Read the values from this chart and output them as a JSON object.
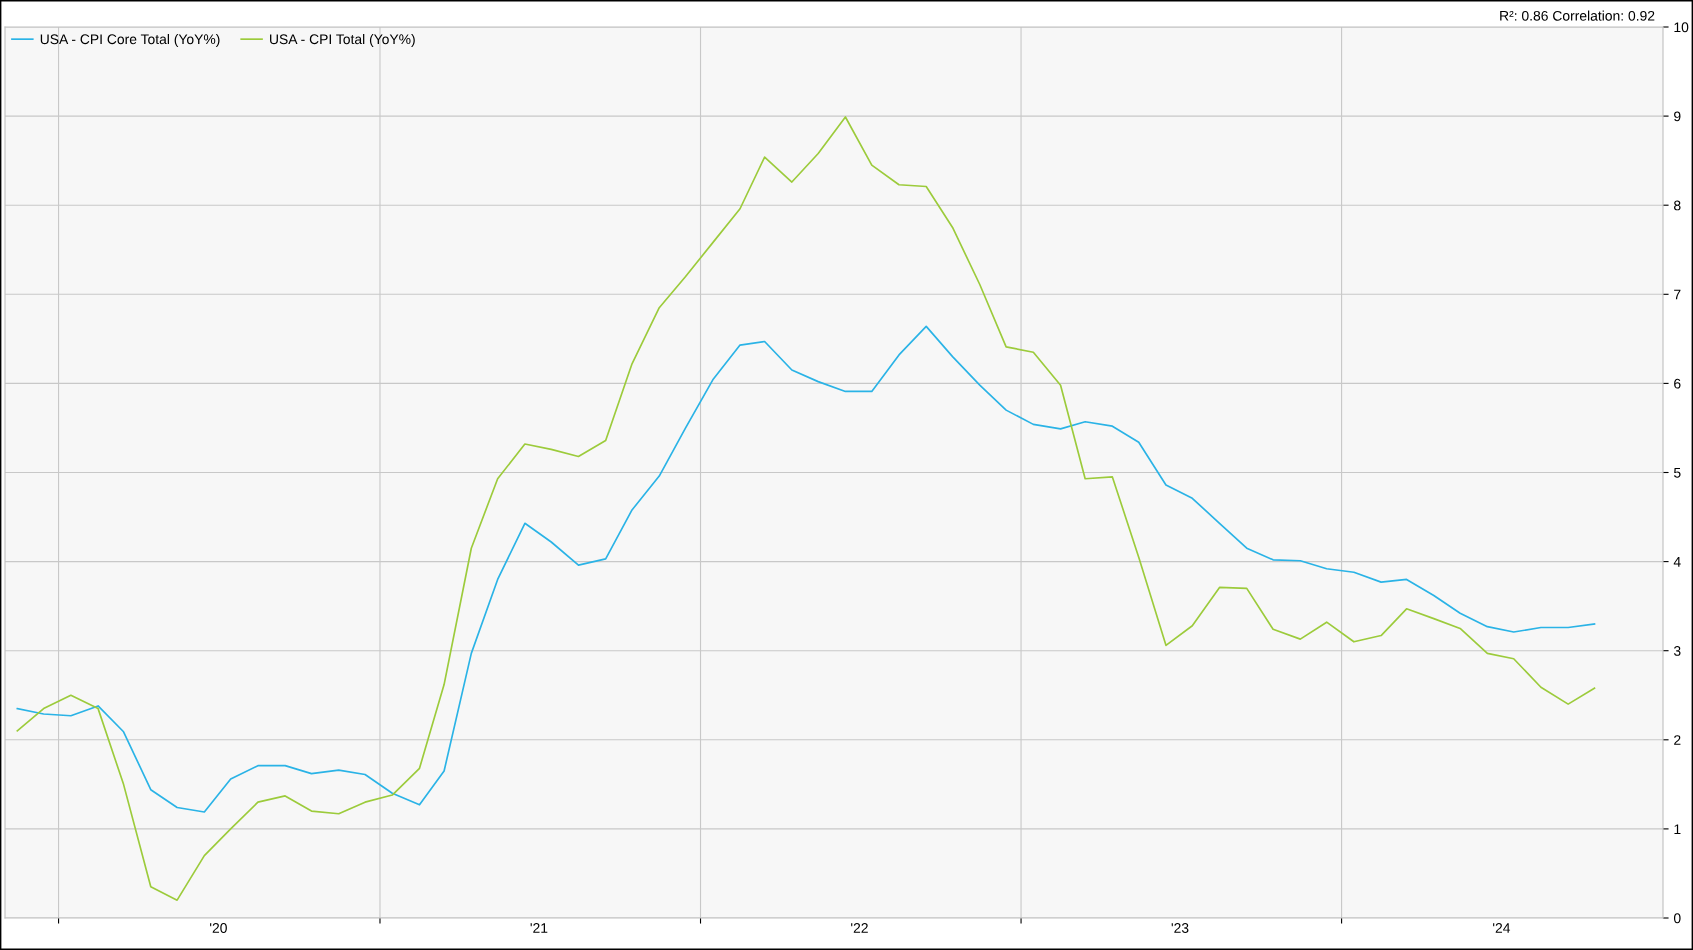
{
  "chart_data": {
    "type": "line",
    "annotations": [
      "R²: 0.86 Correlation: 0.92"
    ],
    "x": [
      "2019-11-15",
      "2019-12-15",
      "2020-01-15",
      "2020-02-15",
      "2020-03-15",
      "2020-04-15",
      "2020-05-15",
      "2020-06-15",
      "2020-07-15",
      "2020-08-15",
      "2020-09-15",
      "2020-10-15",
      "2020-11-15",
      "2020-12-15",
      "2021-01-15",
      "2021-02-15",
      "2021-03-15",
      "2021-04-15",
      "2021-05-15",
      "2021-06-15",
      "2021-07-15",
      "2021-08-15",
      "2021-09-15",
      "2021-10-15",
      "2021-11-15",
      "2021-12-15",
      "2022-01-15",
      "2022-02-15",
      "2022-03-15",
      "2022-04-15",
      "2022-05-15",
      "2022-06-15",
      "2022-07-15",
      "2022-08-15",
      "2022-09-15",
      "2022-10-15",
      "2022-11-15",
      "2022-12-15",
      "2023-01-15",
      "2023-02-15",
      "2023-03-15",
      "2023-04-15",
      "2023-05-15",
      "2023-06-15",
      "2023-07-15",
      "2023-08-15",
      "2023-09-15",
      "2023-10-15",
      "2023-11-15",
      "2023-12-15",
      "2024-01-15",
      "2024-02-15",
      "2024-03-15",
      "2024-04-15",
      "2024-05-15",
      "2024-06-15",
      "2024-07-15",
      "2024-08-15",
      "2024-09-15",
      "2024-10-15"
    ],
    "series": [
      {
        "name": "USA - CPI Core Total (YoY%)",
        "color": "#2ab3e6",
        "values": [
          2.35,
          2.29,
          2.27,
          2.38,
          2.09,
          1.44,
          1.24,
          1.19,
          1.56,
          1.71,
          1.71,
          1.62,
          1.66,
          1.61,
          1.4,
          1.27,
          1.65,
          2.97,
          3.8,
          4.43,
          4.22,
          3.96,
          4.03,
          4.58,
          4.96,
          5.5,
          6.04,
          6.43,
          6.47,
          6.15,
          6.02,
          5.91,
          5.91,
          6.32,
          6.64,
          6.3,
          5.98,
          5.7,
          5.54,
          5.49,
          5.57,
          5.52,
          5.34,
          4.86,
          4.71,
          4.43,
          4.15,
          4.02,
          4.01,
          3.92,
          3.88,
          3.77,
          3.8,
          3.62,
          3.42,
          3.27,
          3.21,
          3.26,
          3.26,
          3.3
        ]
      },
      {
        "name": "USA - CPI Total (YoY%)",
        "color": "#9ccb3b",
        "values": [
          2.1,
          2.35,
          2.5,
          2.35,
          1.5,
          0.35,
          0.2,
          0.7,
          1.0,
          1.3,
          1.37,
          1.2,
          1.17,
          1.3,
          1.38,
          1.68,
          2.62,
          4.15,
          4.93,
          5.32,
          5.26,
          5.18,
          5.36,
          6.22,
          6.85,
          7.2,
          7.58,
          7.96,
          8.54,
          8.26,
          8.58,
          8.99,
          8.45,
          8.23,
          8.21,
          7.75,
          7.11,
          6.41,
          6.35,
          5.98,
          4.93,
          4.95,
          4.05,
          3.06,
          3.28,
          3.71,
          3.7,
          3.24,
          3.13,
          3.32,
          3.1,
          3.17,
          3.47,
          3.36,
          3.25,
          2.97,
          2.91,
          2.59,
          2.4,
          2.58
        ]
      }
    ],
    "xlim": [
      "2019-11-01",
      "2025-01-01"
    ],
    "xticks": [
      {
        "value": "2020-01-01",
        "label": null
      },
      {
        "value": "2020-07-01",
        "label": "'20"
      },
      {
        "value": "2021-01-01",
        "label": null
      },
      {
        "value": "2021-07-01",
        "label": "'21"
      },
      {
        "value": "2022-01-01",
        "label": null
      },
      {
        "value": "2022-07-01",
        "label": "'22"
      },
      {
        "value": "2023-01-01",
        "label": null
      },
      {
        "value": "2023-07-01",
        "label": "'23"
      },
      {
        "value": "2024-01-01",
        "label": null
      },
      {
        "value": "2024-07-01",
        "label": "'24"
      }
    ],
    "ylim": [
      0,
      10
    ],
    "yticks": [
      0,
      1,
      2,
      3,
      4,
      5,
      6,
      7,
      8,
      9,
      10
    ],
    "grid": true,
    "legend": "top left",
    "marker": "none",
    "line_style": "solid"
  }
}
